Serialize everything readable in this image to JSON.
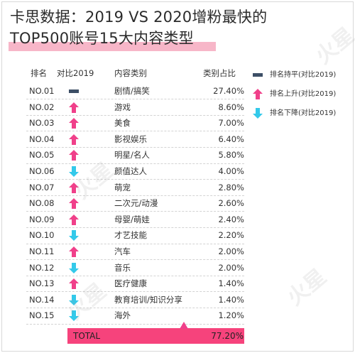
{
  "title": {
    "line1": "卡思数据：2019 VS 2020增粉最快的",
    "line2": "TOP500账号15大内容类型"
  },
  "headers": {
    "rank": "排名",
    "compare": "对比2019",
    "category": "内容类别",
    "share": "类别占比"
  },
  "legend": [
    {
      "icon": "flat-bar-icon",
      "label": "排名持平(对比2019)"
    },
    {
      "icon": "arrow-up-icon",
      "label": "排名上升(对比2019)"
    },
    {
      "icon": "arrow-down-icon",
      "label": "排名下降(对比2019)"
    }
  ],
  "colors": {
    "flat": "#3d4f66",
    "up": "#f0408a",
    "down": "#33c9ea",
    "total_bar": "#f6437c",
    "title_highlight": "#f7b6c8"
  },
  "total": {
    "label": "TOTAL",
    "value": "77.20%"
  },
  "chart_data": {
    "type": "table",
    "columns": [
      "排名",
      "对比2019",
      "内容类别",
      "类别占比"
    ],
    "rows": [
      {
        "rank": "NO.01",
        "trend": "flat",
        "category": "剧情/搞笑",
        "share": "27.40%",
        "value": 27.4
      },
      {
        "rank": "NO.02",
        "trend": "up",
        "category": "游戏",
        "share": "8.60%",
        "value": 8.6
      },
      {
        "rank": "NO.03",
        "trend": "up",
        "category": "美食",
        "share": "7.00%",
        "value": 7.0
      },
      {
        "rank": "NO.04",
        "trend": "up",
        "category": "影视娱乐",
        "share": "6.40%",
        "value": 6.4
      },
      {
        "rank": "NO.05",
        "trend": "up",
        "category": "明星/名人",
        "share": "5.80%",
        "value": 5.8
      },
      {
        "rank": "NO.06",
        "trend": "down",
        "category": "颜值达人",
        "share": "4.00%",
        "value": 4.0
      },
      {
        "rank": "NO.07",
        "trend": "up",
        "category": "萌宠",
        "share": "2.80%",
        "value": 2.8
      },
      {
        "rank": "NO.08",
        "trend": "up",
        "category": "二次元/动漫",
        "share": "2.60%",
        "value": 2.6
      },
      {
        "rank": "NO.09",
        "trend": "up",
        "category": "母婴/萌娃",
        "share": "2.40%",
        "value": 2.4
      },
      {
        "rank": "NO.10",
        "trend": "down",
        "category": "才艺技能",
        "share": "2.20%",
        "value": 2.2
      },
      {
        "rank": "NO.11",
        "trend": "up",
        "category": "汽车",
        "share": "2.00%",
        "value": 2.0
      },
      {
        "rank": "NO.12",
        "trend": "down",
        "category": "音乐",
        "share": "2.00%",
        "value": 2.0
      },
      {
        "rank": "NO.13",
        "trend": "up",
        "category": "医疗健康",
        "share": "1.40%",
        "value": 1.4
      },
      {
        "rank": "NO.14",
        "trend": "down",
        "category": "教育培训/知识分享",
        "share": "1.40%",
        "value": 1.4
      },
      {
        "rank": "NO.15",
        "trend": "down",
        "category": "海外",
        "share": "1.20%",
        "value": 1.2
      }
    ]
  }
}
